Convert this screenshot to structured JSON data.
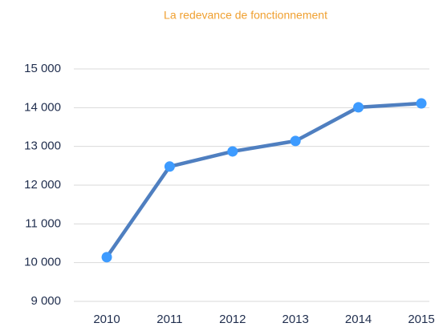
{
  "chart_data": {
    "type": "line",
    "title": "La redevance de fonctionnement",
    "title_color": "#f0a030",
    "categories": [
      "2010",
      "2011",
      "2012",
      "2013",
      "2014",
      "2015"
    ],
    "series": [
      {
        "name": "La redevance de fonctionnement",
        "color": "#4f7fc0",
        "marker_color": "#3d9bff",
        "values": [
          10140,
          12480,
          12870,
          13140,
          14010,
          14110
        ]
      }
    ],
    "ylim": [
      9000,
      15000
    ],
    "yticks": [
      {
        "value": 9000,
        "label": "9 000"
      },
      {
        "value": 10000,
        "label": "10 000"
      },
      {
        "value": 11000,
        "label": "11 000"
      },
      {
        "value": 12000,
        "label": "12 000"
      },
      {
        "value": 13000,
        "label": "13 000"
      },
      {
        "value": 14000,
        "label": "14 000"
      },
      {
        "value": 15000,
        "label": "15 000"
      }
    ],
    "grid": true
  }
}
